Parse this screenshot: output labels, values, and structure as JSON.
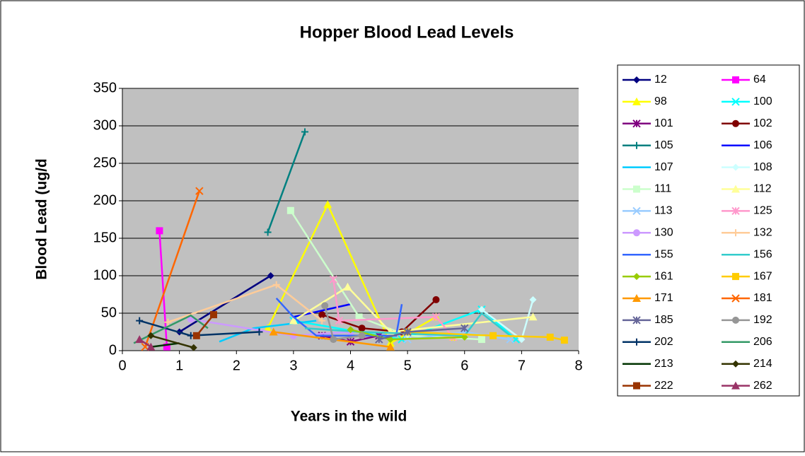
{
  "chart_data": {
    "type": "scatter",
    "title": "Hopper Blood Lead Levels",
    "x_label": "Years in the wild",
    "y_label": "Blood Lead (ug/d",
    "xlim": [
      0,
      8
    ],
    "xticks": [
      0,
      1,
      2,
      3,
      4,
      5,
      6,
      7,
      8
    ],
    "ylim": [
      0,
      350
    ],
    "yticks": [
      0,
      50,
      100,
      150,
      200,
      250,
      300,
      350
    ],
    "grid": true,
    "legend": "right",
    "series": [
      {
        "name": "12",
        "color": "#000080",
        "marker": "diamond",
        "x": [
          1.0,
          2.6
        ],
        "values": [
          25,
          100
        ]
      },
      {
        "name": "64",
        "color": "#ff00ff",
        "marker": "square",
        "x": [
          0.65,
          0.78
        ],
        "values": [
          160,
          5
        ]
      },
      {
        "name": "98",
        "color": "#ffff00",
        "marker": "triangle",
        "x": [
          2.55,
          3.6,
          4.7,
          5.5,
          5.8
        ],
        "values": [
          30,
          195,
          10,
          45,
          18
        ]
      },
      {
        "name": "100",
        "color": "#00ffff",
        "marker": "x",
        "x": [
          3.0,
          4.9,
          6.3,
          6.9
        ],
        "values": [
          40,
          15,
          55,
          15
        ]
      },
      {
        "name": "101",
        "color": "#800080",
        "marker": "star",
        "x": [
          3.5,
          4.0,
          4.5
        ],
        "values": [
          20,
          12,
          20
        ]
      },
      {
        "name": "102",
        "color": "#800000",
        "marker": "circle",
        "x": [
          3.5,
          4.2,
          4.9,
          5.5
        ],
        "values": [
          48,
          30,
          25,
          68
        ]
      },
      {
        "name": "105",
        "color": "#008080",
        "marker": "plus",
        "x": [
          2.55,
          3.2
        ],
        "values": [
          158,
          292
        ]
      },
      {
        "name": "106",
        "color": "#0000ff",
        "marker": "none",
        "x": [
          3.0,
          4.0
        ],
        "values": [
          45,
          62
        ]
      },
      {
        "name": "107",
        "color": "#00ccff",
        "marker": "none",
        "x": [
          1.7,
          2.3,
          3.4
        ],
        "values": [
          12,
          30,
          40
        ]
      },
      {
        "name": "108",
        "color": "#ccffff",
        "marker": "diamond",
        "x": [
          6.3,
          7.0,
          7.2
        ],
        "values": [
          55,
          15,
          68
        ]
      },
      {
        "name": "111",
        "color": "#ccffcc",
        "marker": "square",
        "x": [
          2.95,
          4.15,
          5.0,
          6.3
        ],
        "values": [
          187,
          45,
          20,
          15
        ]
      },
      {
        "name": "112",
        "color": "#ffff99",
        "marker": "triangle",
        "x": [
          3.0,
          3.95,
          4.7,
          7.2
        ],
        "values": [
          40,
          85,
          25,
          45
        ]
      },
      {
        "name": "113",
        "color": "#99ccff",
        "marker": "x",
        "x": [
          5.0,
          6.0,
          6.8
        ],
        "values": [
          15,
          25,
          15
        ]
      },
      {
        "name": "125",
        "color": "#ff99cc",
        "marker": "star",
        "x": [
          3.7,
          3.8,
          5.5,
          5.8
        ],
        "values": [
          95,
          40,
          45,
          18
        ]
      },
      {
        "name": "130",
        "color": "#cc99ff",
        "marker": "circle",
        "x": [
          1.2,
          3.0,
          4.0
        ],
        "values": [
          42,
          20,
          25
        ]
      },
      {
        "name": "132",
        "color": "#ffcc99",
        "marker": "plus",
        "x": [
          0.8,
          2.7,
          3.5
        ],
        "values": [
          38,
          88,
          40
        ]
      },
      {
        "name": "155",
        "color": "#3366ff",
        "marker": "none",
        "x": [
          2.7,
          3.0,
          3.4,
          4.8,
          4.9
        ],
        "values": [
          70,
          45,
          20,
          20,
          62
        ]
      },
      {
        "name": "156",
        "color": "#33cccc",
        "marker": "none",
        "x": [
          3.2,
          4.2,
          6.0,
          6.3,
          6.8
        ],
        "values": [
          30,
          25,
          20,
          50,
          20
        ]
      },
      {
        "name": "161",
        "color": "#99cc00",
        "marker": "diamond",
        "x": [
          4.0,
          4.7,
          6.0
        ],
        "values": [
          28,
          15,
          18
        ]
      },
      {
        "name": "167",
        "color": "#ffcc00",
        "marker": "square",
        "x": [
          5.0,
          6.5,
          7.5,
          7.75
        ],
        "values": [
          25,
          20,
          18,
          14
        ]
      },
      {
        "name": "171",
        "color": "#ff9900",
        "marker": "triangle",
        "x": [
          2.65,
          4.7
        ],
        "values": [
          25,
          5
        ]
      },
      {
        "name": "181",
        "color": "#ff6600",
        "marker": "x",
        "x": [
          0.4,
          1.35
        ],
        "values": [
          5,
          213
        ]
      },
      {
        "name": "185",
        "color": "#666699",
        "marker": "star",
        "x": [
          4.5,
          5.0,
          6.0
        ],
        "values": [
          15,
          25,
          30
        ]
      },
      {
        "name": "192",
        "color": "#969696",
        "marker": "circle",
        "x": [
          3.55,
          3.7,
          4.2
        ],
        "values": [
          60,
          15,
          20
        ]
      },
      {
        "name": "202",
        "color": "#003366",
        "marker": "plus",
        "x": [
          0.3,
          1.2,
          2.4
        ],
        "values": [
          40,
          20,
          25
        ]
      },
      {
        "name": "206",
        "color": "#339966",
        "marker": "none",
        "x": [
          0.2,
          1.2,
          1.5
        ],
        "values": [
          10,
          47,
          30
        ]
      },
      {
        "name": "213",
        "color": "#003300",
        "marker": "none",
        "x": [
          0.5,
          1.0
        ],
        "values": [
          5,
          10
        ]
      },
      {
        "name": "214",
        "color": "#333300",
        "marker": "diamond",
        "x": [
          0.5,
          1.25
        ],
        "values": [
          20,
          4
        ]
      },
      {
        "name": "222",
        "color": "#993300",
        "marker": "square",
        "x": [
          1.3,
          1.6
        ],
        "values": [
          20,
          48
        ]
      },
      {
        "name": "262",
        "color": "#993366",
        "marker": "triangle",
        "x": [
          0.3,
          0.5
        ],
        "values": [
          15,
          5
        ]
      }
    ]
  }
}
